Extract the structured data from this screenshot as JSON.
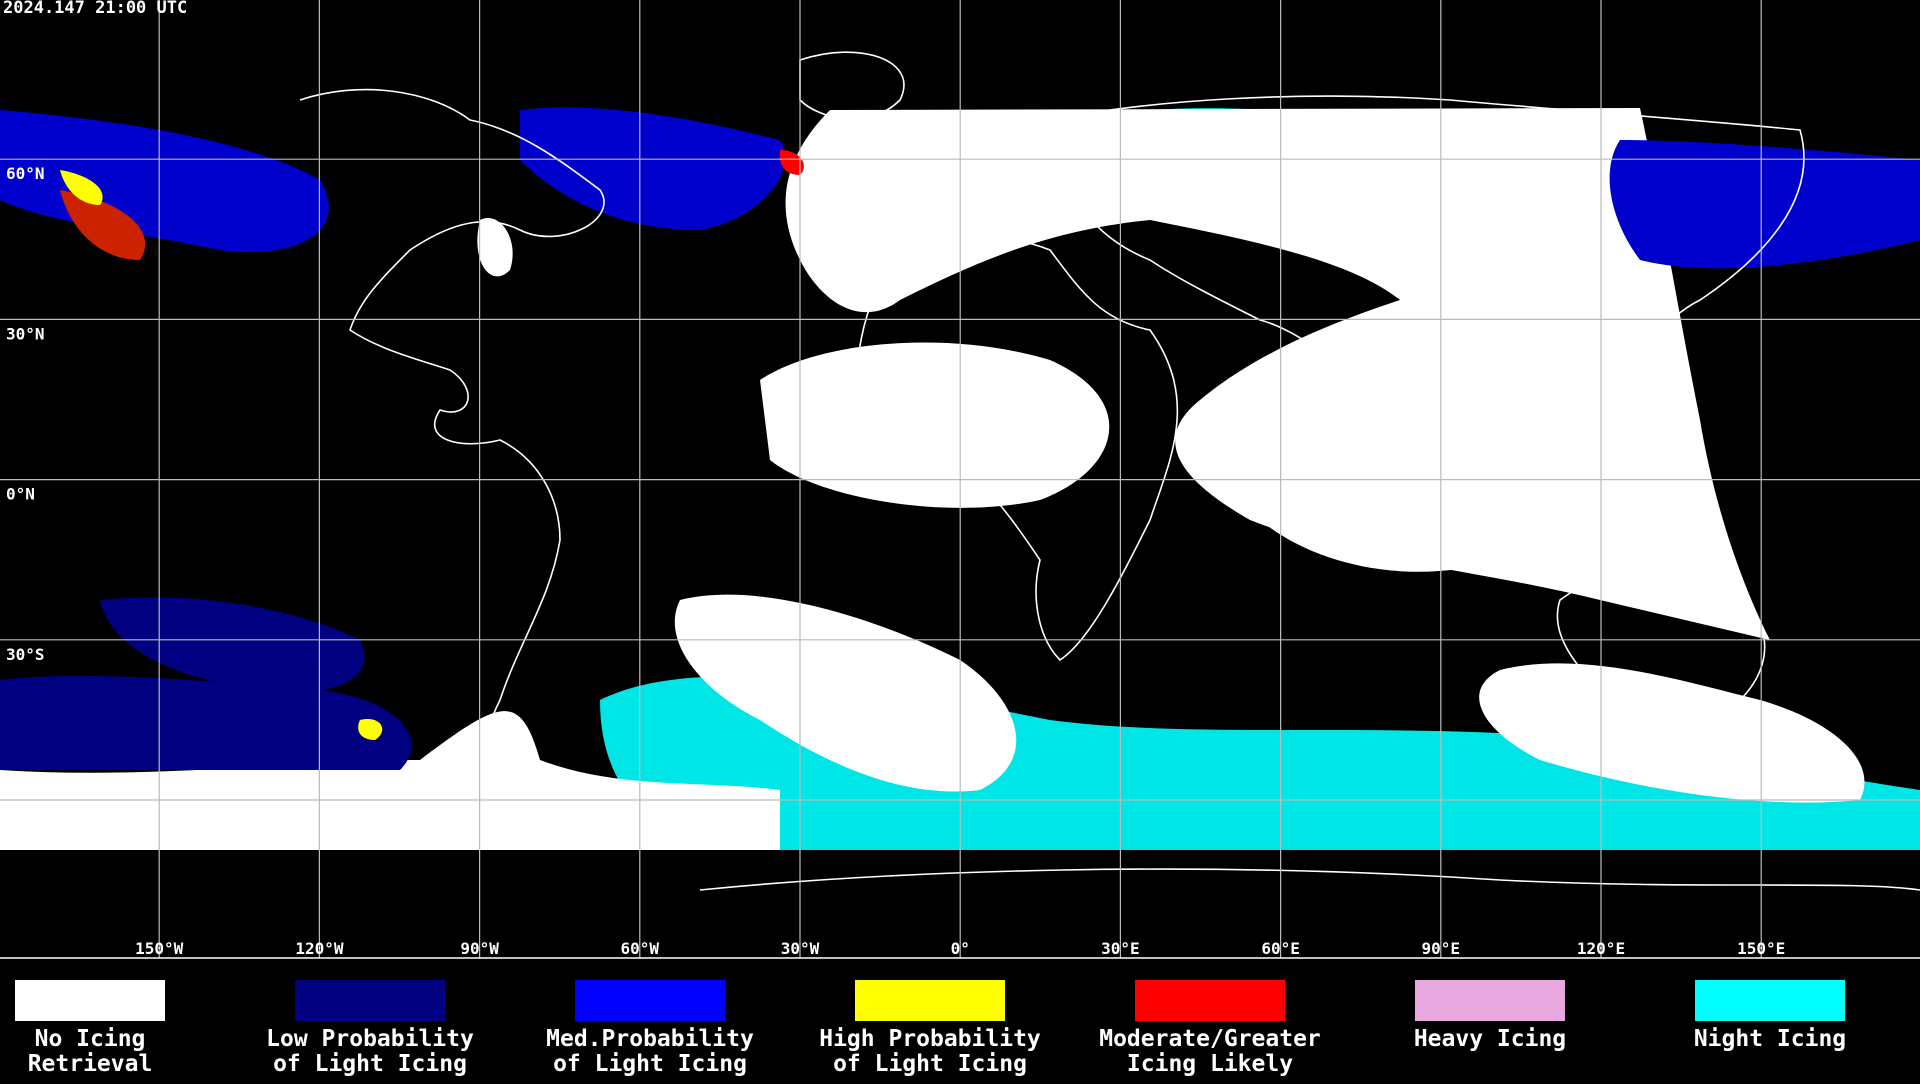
{
  "header": {
    "timestamp": "2024.147 21:00 UTC"
  },
  "map": {
    "lat_labels": [
      "60°N",
      "30°N",
      "0°N",
      "30°S"
    ],
    "lon_labels": [
      "150°W",
      "120°W",
      "90°W",
      "60°W",
      "30°W",
      "0°",
      "30°E",
      "60°E",
      "90°E",
      "120°E",
      "150°E"
    ]
  },
  "legend": {
    "items": [
      {
        "lines": [
          "No Icing",
          "Retrieval"
        ],
        "color": "#ffffff"
      },
      {
        "lines": [
          "Low Probability",
          "of Light Icing"
        ],
        "color": "#000080"
      },
      {
        "lines": [
          "Med.Probability",
          "of Light Icing"
        ],
        "color": "#0000ff"
      },
      {
        "lines": [
          "High Probability",
          "of Light Icing"
        ],
        "color": "#ffff00"
      },
      {
        "lines": [
          "Moderate/Greater",
          "Icing Likely"
        ],
        "color": "#ff0000"
      },
      {
        "lines": [
          "Heavy Icing"
        ],
        "color": "#e8a8e0"
      },
      {
        "lines": [
          "Night Icing"
        ],
        "color": "#00ffff"
      }
    ]
  }
}
